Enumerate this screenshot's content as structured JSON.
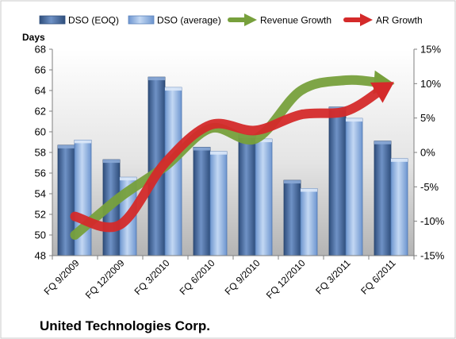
{
  "chart_data": {
    "type": "bar",
    "company": "United Technologies Corp.",
    "ylabel": "Days",
    "categories": [
      "FQ 9/2009",
      "FQ 12/2009",
      "FQ 3/2010",
      "FQ 6/2010",
      "FQ 9/2010",
      "FQ 12/2010",
      "FQ 3/2011",
      "FQ 6/2011"
    ],
    "series": [
      {
        "name": "DSO (EOQ)",
        "kind": "bar",
        "axis": "left",
        "color": "#4a6fa5",
        "values": [
          58.7,
          57.3,
          65.3,
          58.5,
          59.7,
          55.3,
          62.4,
          59.1
        ]
      },
      {
        "name": "DSO (average)",
        "kind": "bar",
        "axis": "left",
        "color": "#8fb4e3",
        "values": [
          59.2,
          55.6,
          64.3,
          58.1,
          59.3,
          54.5,
          61.3,
          57.4
        ]
      },
      {
        "name": "Revenue Growth",
        "kind": "arrow-line",
        "axis": "right",
        "color": "#77a03c",
        "values": [
          -12,
          -6.5,
          -2,
          3.5,
          2,
          9,
          10.5,
          10
        ]
      },
      {
        "name": "AR Growth",
        "kind": "arrow-line",
        "axis": "right",
        "color": "#d42a2a",
        "values": [
          -9.3,
          -10.5,
          -1.5,
          4,
          3.2,
          5.5,
          6,
          10
        ]
      }
    ],
    "ylim": [
      48,
      68
    ],
    "yticks": [
      "48",
      "50",
      "52",
      "54",
      "56",
      "58",
      "60",
      "62",
      "64",
      "66",
      "68"
    ],
    "y2lim": [
      -15,
      15
    ],
    "y2ticks": [
      "-15%",
      "-10%",
      "-5%",
      "0%",
      "5%",
      "10%",
      "15%"
    ],
    "grid": false,
    "legend": "top"
  }
}
